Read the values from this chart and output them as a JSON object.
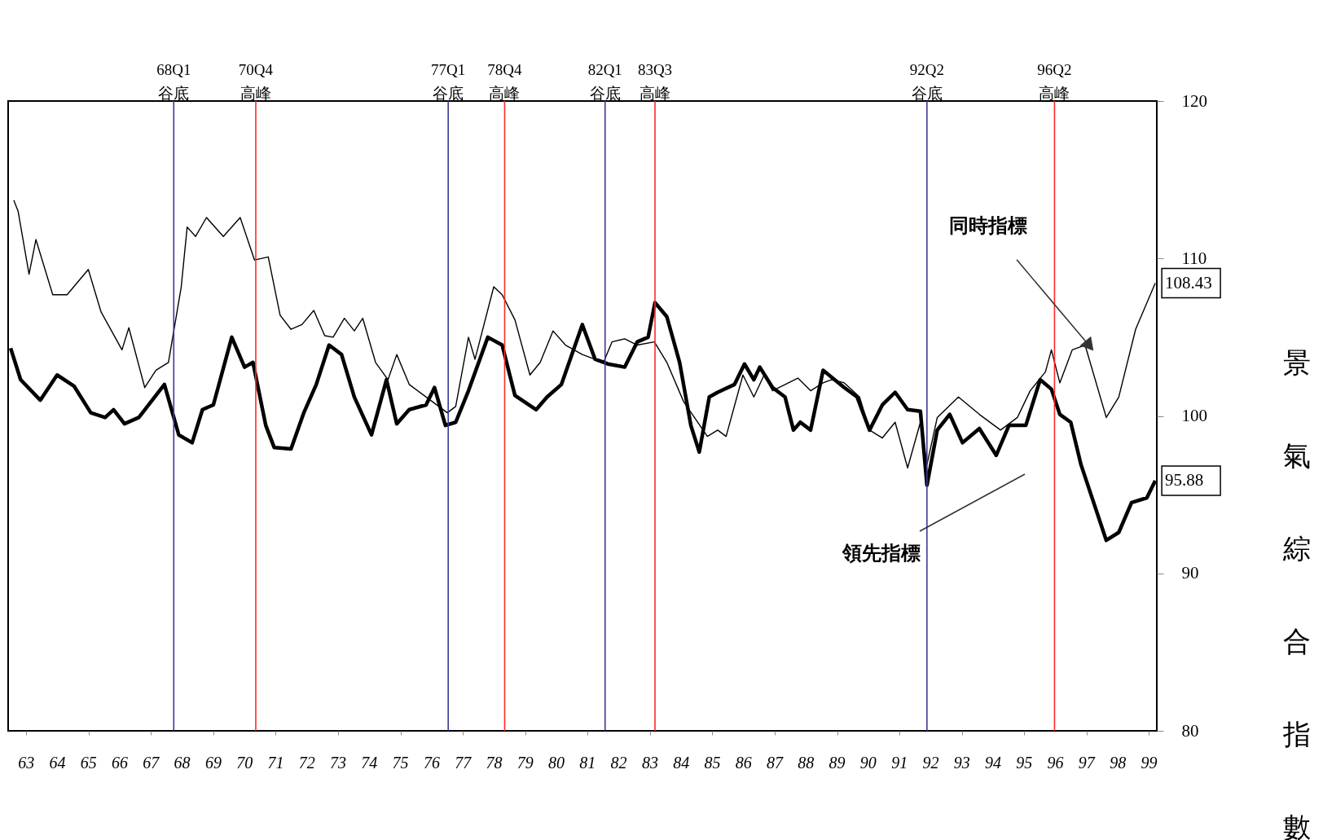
{
  "chart_data": {
    "type": "line",
    "ylabel": "景氣綜合指數",
    "xlim": [
      62.82,
      99.65
    ],
    "ylim": [
      80,
      120
    ],
    "yticks": [
      80,
      90,
      100,
      110,
      120
    ],
    "xticks": [
      {
        "value": 63.4,
        "label": "63"
      },
      {
        "value": 64.4,
        "label": "64"
      },
      {
        "value": 65.4,
        "label": "65"
      },
      {
        "value": 66.4,
        "label": "66"
      },
      {
        "value": 67.4,
        "label": "67"
      },
      {
        "value": 68.4,
        "label": "68"
      },
      {
        "value": 69.4,
        "label": "69"
      },
      {
        "value": 70.4,
        "label": "70"
      },
      {
        "value": 71.4,
        "label": "71"
      },
      {
        "value": 72.4,
        "label": "72"
      },
      {
        "value": 73.4,
        "label": "73"
      },
      {
        "value": 74.4,
        "label": "74"
      },
      {
        "value": 75.4,
        "label": "75"
      },
      {
        "value": 76.4,
        "label": "76"
      },
      {
        "value": 77.4,
        "label": "77"
      },
      {
        "value": 78.4,
        "label": "78"
      },
      {
        "value": 79.4,
        "label": "79"
      },
      {
        "value": 80.4,
        "label": "80"
      },
      {
        "value": 81.4,
        "label": "81"
      },
      {
        "value": 82.4,
        "label": "82"
      },
      {
        "value": 83.4,
        "label": "83"
      },
      {
        "value": 84.4,
        "label": "84"
      },
      {
        "value": 85.4,
        "label": "85"
      },
      {
        "value": 86.4,
        "label": "86"
      },
      {
        "value": 87.4,
        "label": "87"
      },
      {
        "value": 88.4,
        "label": "88"
      },
      {
        "value": 89.4,
        "label": "89"
      },
      {
        "value": 90.4,
        "label": "90"
      },
      {
        "value": 91.4,
        "label": "91"
      },
      {
        "value": 92.4,
        "label": "92"
      },
      {
        "value": 93.4,
        "label": "93"
      },
      {
        "value": 94.4,
        "label": "94"
      },
      {
        "value": 95.4,
        "label": "95"
      },
      {
        "value": 96.4,
        "label": "96"
      },
      {
        "value": 97.4,
        "label": "97"
      },
      {
        "value": 98.4,
        "label": "98"
      },
      {
        "value": 99.4,
        "label": "99"
      }
    ],
    "grid": false,
    "series": [
      {
        "color": "#000000",
        "x": [
          63.0,
          63.14,
          63.49,
          63.71,
          64.25,
          64.71,
          65.39,
          65.8,
          66.47,
          66.69,
          67.2,
          67.56,
          67.96,
          68.37,
          68.56,
          68.83,
          69.18,
          69.72,
          70.26,
          70.72,
          71.16,
          71.54,
          71.89,
          72.24,
          72.62,
          72.97,
          73.24,
          73.6,
          73.92,
          74.19,
          74.6,
          75.0,
          75.28,
          75.68,
          76.63,
          76.9,
          77.17,
          77.58,
          77.79,
          78.39,
          78.66,
          79.07,
          79.55,
          79.88,
          80.29,
          80.69,
          81.23,
          81.91,
          82.18,
          82.59,
          82.99,
          83.54,
          83.94,
          84.48,
          85.24,
          85.57,
          85.84,
          86.38,
          86.73,
          87.06,
          87.33,
          88.14,
          88.55,
          88.95,
          89.22,
          89.63,
          90.12,
          90.44,
          90.85,
          91.26,
          91.66,
          92.07,
          92.28,
          92.61,
          93.29,
          93.96,
          94.64,
          95.18,
          95.59,
          96.08,
          96.27,
          96.54,
          96.94,
          97.35,
          98.03,
          98.43,
          98.97,
          99.6
        ],
        "values": [
          113.7,
          113.0,
          109.0,
          111.2,
          107.7,
          107.7,
          109.3,
          106.6,
          104.2,
          105.6,
          101.8,
          102.9,
          103.4,
          108.2,
          112.0,
          111.4,
          112.6,
          111.4,
          112.6,
          109.9,
          110.1,
          106.4,
          105.5,
          105.8,
          106.7,
          105.1,
          105.0,
          106.2,
          105.4,
          106.2,
          103.4,
          102.3,
          103.9,
          102.0,
          100.6,
          100.2,
          100.6,
          105.0,
          103.6,
          108.2,
          107.7,
          106.1,
          102.6,
          103.4,
          105.4,
          104.5,
          103.9,
          103.4,
          104.7,
          104.9,
          104.5,
          104.7,
          103.4,
          100.9,
          98.7,
          99.1,
          98.7,
          102.6,
          101.2,
          102.6,
          101.6,
          102.4,
          101.6,
          102.1,
          102.3,
          102.1,
          101.2,
          99.1,
          98.6,
          99.6,
          96.7,
          99.6,
          96.9,
          99.9,
          101.2,
          100.1,
          99.1,
          99.9,
          101.6,
          102.8,
          104.2,
          102.1,
          104.2,
          104.5,
          99.9,
          101.2,
          105.5,
          108.43
        ],
        "value_labels": [
          null,
          null,
          null,
          null,
          null,
          null,
          null,
          null,
          null,
          null,
          null,
          null,
          null,
          null,
          null,
          null,
          null,
          null,
          null,
          null,
          null,
          null,
          null,
          null,
          null,
          null,
          null,
          null,
          null,
          null,
          null,
          null,
          null,
          null,
          null,
          null,
          null,
          null,
          null,
          null,
          null,
          null,
          null,
          null,
          null,
          null,
          null,
          null,
          null,
          null,
          null,
          null,
          null,
          null,
          null,
          null,
          null,
          null,
          null,
          null,
          null,
          null,
          null,
          null,
          null,
          null,
          null,
          null,
          null,
          null,
          null,
          null,
          null,
          null,
          null,
          null,
          null,
          null,
          null,
          null,
          null,
          null,
          null,
          null,
          null,
          null,
          null,
          "108.43"
        ]
      },
      {
        "color": "#000000",
        "x": [
          62.9,
          63.22,
          63.85,
          64.39,
          64.93,
          65.47,
          65.93,
          66.2,
          66.55,
          67.01,
          67.83,
          68.29,
          68.72,
          69.05,
          69.4,
          69.99,
          70.4,
          70.67,
          71.08,
          71.35,
          71.89,
          72.3,
          72.7,
          73.11,
          73.51,
          73.92,
          74.47,
          74.95,
          75.28,
          75.68,
          76.22,
          76.49,
          76.84,
          77.17,
          77.58,
          78.2,
          78.66,
          79.07,
          79.75,
          80.1,
          80.56,
          81.23,
          81.64,
          82.05,
          82.59,
          82.99,
          83.34,
          83.56,
          83.94,
          84.35,
          84.71,
          84.98,
          85.3,
          85.57,
          86.11,
          86.43,
          86.73,
          86.92,
          87.33,
          87.73,
          88.0,
          88.22,
          88.55,
          88.95,
          89.63,
          90.04,
          90.44,
          90.85,
          91.26,
          91.66,
          92.07,
          92.28,
          92.61,
          93.01,
          93.42,
          93.96,
          94.5,
          94.91,
          95.45,
          95.91,
          96.27,
          96.54,
          96.89,
          97.22,
          98.03,
          98.43,
          98.84,
          99.33,
          99.6
        ],
        "values": [
          104.3,
          102.3,
          101.0,
          102.6,
          101.9,
          100.2,
          99.9,
          100.4,
          99.5,
          99.9,
          102.0,
          98.8,
          98.3,
          100.4,
          100.7,
          105.0,
          103.1,
          103.4,
          99.4,
          98.0,
          97.9,
          100.2,
          102.0,
          104.5,
          103.9,
          101.2,
          98.8,
          102.3,
          99.5,
          100.4,
          100.7,
          101.8,
          99.4,
          99.6,
          101.6,
          105.0,
          104.5,
          101.3,
          100.4,
          101.2,
          102.0,
          105.8,
          103.6,
          103.3,
          103.1,
          104.7,
          105.0,
          107.2,
          106.3,
          103.4,
          99.4,
          97.7,
          101.2,
          101.5,
          102.0,
          103.3,
          102.3,
          103.1,
          101.8,
          101.2,
          99.1,
          99.6,
          99.1,
          102.9,
          101.8,
          101.2,
          99.1,
          100.7,
          101.5,
          100.4,
          100.3,
          95.6,
          99.1,
          100.1,
          98.3,
          99.2,
          97.5,
          99.4,
          99.4,
          102.3,
          101.7,
          100.1,
          99.6,
          96.9,
          92.1,
          92.6,
          94.5,
          94.8,
          95.88
        ],
        "value_labels": [
          null,
          null,
          null,
          null,
          null,
          null,
          null,
          null,
          null,
          null,
          null,
          null,
          null,
          null,
          null,
          null,
          null,
          null,
          null,
          null,
          null,
          null,
          null,
          null,
          null,
          null,
          null,
          null,
          null,
          null,
          null,
          null,
          null,
          null,
          null,
          null,
          null,
          null,
          null,
          null,
          null,
          null,
          null,
          null,
          null,
          null,
          null,
          null,
          null,
          null,
          null,
          null,
          null,
          null,
          null,
          null,
          null,
          null,
          null,
          null,
          null,
          null,
          null,
          null,
          null,
          null,
          null,
          null,
          null,
          null,
          null,
          null,
          null,
          null,
          null,
          null,
          null,
          null,
          null,
          null,
          null,
          null,
          null,
          null,
          null,
          null,
          null,
          null,
          "95.88"
        ]
      }
    ],
    "ref_lines": [
      {
        "axis": "x",
        "value": 68.13,
        "label": "68Q1\n谷底",
        "color": "#3a3a96"
      },
      {
        "axis": "x",
        "value": 70.76,
        "label": "70Q4\n高峰",
        "color": "#ff2a2a"
      },
      {
        "axis": "x",
        "value": 76.93,
        "label": "77Q1\n谷底",
        "color": "#3a3a96"
      },
      {
        "axis": "x",
        "value": 78.74,
        "label": "78Q4\n高峰",
        "color": "#ff2a2a"
      },
      {
        "axis": "x",
        "value": 81.96,
        "label": "82Q1\n谷底",
        "color": "#3a3a96"
      },
      {
        "axis": "x",
        "value": 83.56,
        "label": "83Q3\n高峰",
        "color": "#ff2a2a"
      },
      {
        "axis": "x",
        "value": 92.28,
        "label": "92Q2\n谷底",
        "color": "#3a3a96"
      },
      {
        "axis": "x",
        "value": 96.37,
        "label": "96Q2\n高峰",
        "color": "#ff2a2a"
      }
    ],
    "annotations": [
      {
        "text": "同時指標",
        "x": 97.49,
        "y": 104.45
      },
      "領先指標"
    ]
  }
}
